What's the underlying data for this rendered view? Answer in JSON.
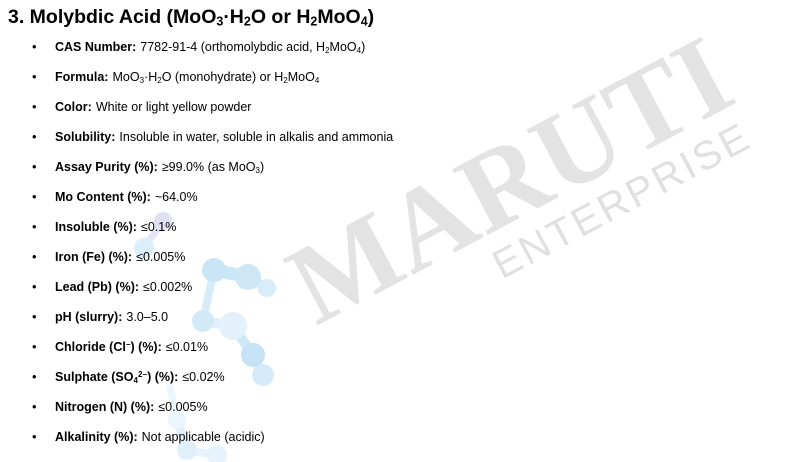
{
  "document": {
    "heading": [
      {
        "t": "3. Molybdic Acid (MoO"
      },
      {
        "t": "3",
        "m": "sub"
      },
      {
        "t": "·H"
      },
      {
        "t": "2",
        "m": "sub"
      },
      {
        "t": "O or H"
      },
      {
        "t": "2",
        "m": "sub"
      },
      {
        "t": "MoO"
      },
      {
        "t": "4",
        "m": "sub"
      },
      {
        "t": ")"
      }
    ],
    "bullets": [
      {
        "label": [
          {
            "t": "CAS Number:"
          }
        ],
        "value": [
          {
            "t": "7782-91-4 (orthomolybdic acid, H"
          },
          {
            "t": "2",
            "m": "sub"
          },
          {
            "t": "MoO"
          },
          {
            "t": "4",
            "m": "sub"
          },
          {
            "t": ")"
          }
        ]
      },
      {
        "label": [
          {
            "t": "Formula:"
          }
        ],
        "value": [
          {
            "t": "MoO"
          },
          {
            "t": "3",
            "m": "sub"
          },
          {
            "t": "·H"
          },
          {
            "t": "2",
            "m": "sub"
          },
          {
            "t": "O (monohydrate) or H"
          },
          {
            "t": "2",
            "m": "sub"
          },
          {
            "t": "MoO"
          },
          {
            "t": "4",
            "m": "sub"
          }
        ]
      },
      {
        "label": [
          {
            "t": "Color:"
          }
        ],
        "value": [
          {
            "t": "White or light yellow powder"
          }
        ]
      },
      {
        "label": [
          {
            "t": "Solubility:"
          }
        ],
        "value": [
          {
            "t": "Insoluble in water, soluble in alkalis and ammonia"
          }
        ]
      },
      {
        "label": [
          {
            "t": "Assay Purity (%):"
          }
        ],
        "value": [
          {
            "t": "≥99.0% (as MoO"
          },
          {
            "t": "3",
            "m": "sub"
          },
          {
            "t": ")"
          }
        ]
      },
      {
        "label": [
          {
            "t": "Mo Content (%):"
          }
        ],
        "value": [
          {
            "t": "~64.0%"
          }
        ]
      },
      {
        "label": [
          {
            "t": "Insoluble (%):"
          }
        ],
        "value": [
          {
            "t": "≤0.1%"
          }
        ]
      },
      {
        "label": [
          {
            "t": "Iron (Fe) (%):"
          }
        ],
        "value": [
          {
            "t": "≤0.005%"
          }
        ]
      },
      {
        "label": [
          {
            "t": "Lead (Pb) (%):"
          }
        ],
        "value": [
          {
            "t": "≤0.002%"
          }
        ]
      },
      {
        "label": [
          {
            "t": "pH (slurry):"
          }
        ],
        "value": [
          {
            "t": "3.0–5.0"
          }
        ]
      },
      {
        "label": [
          {
            "t": "Chloride (Cl"
          },
          {
            "t": "−",
            "m": "sup"
          },
          {
            "t": ") (%):"
          }
        ],
        "value": [
          {
            "t": "≤0.01%"
          }
        ]
      },
      {
        "label": [
          {
            "t": "Sulphate (SO"
          },
          {
            "t": "4",
            "m": "sub"
          },
          {
            "t": "2−",
            "m": "sup"
          },
          {
            "t": ") (%):"
          }
        ],
        "value": [
          {
            "t": "≤0.02%"
          }
        ]
      },
      {
        "label": [
          {
            "t": "Nitrogen (N) (%):"
          }
        ],
        "value": [
          {
            "t": "≤0.005%"
          }
        ]
      },
      {
        "label": [
          {
            "t": "Alkalinity (%):"
          }
        ],
        "value": [
          {
            "t": "Not applicable (acidic)"
          }
        ]
      }
    ]
  },
  "list": {
    "bullet_char": "•"
  },
  "watermark": {
    "primary": "MARUTI",
    "secondary": "ENTERPRISE",
    "color_primary": "#e3e3e3",
    "color_secondary": "#e0e0e0"
  },
  "decor": {
    "molecule_colors": [
      "#c9e5f6",
      "#dceefb",
      "#e2f1fb",
      "#e1dff4"
    ]
  }
}
